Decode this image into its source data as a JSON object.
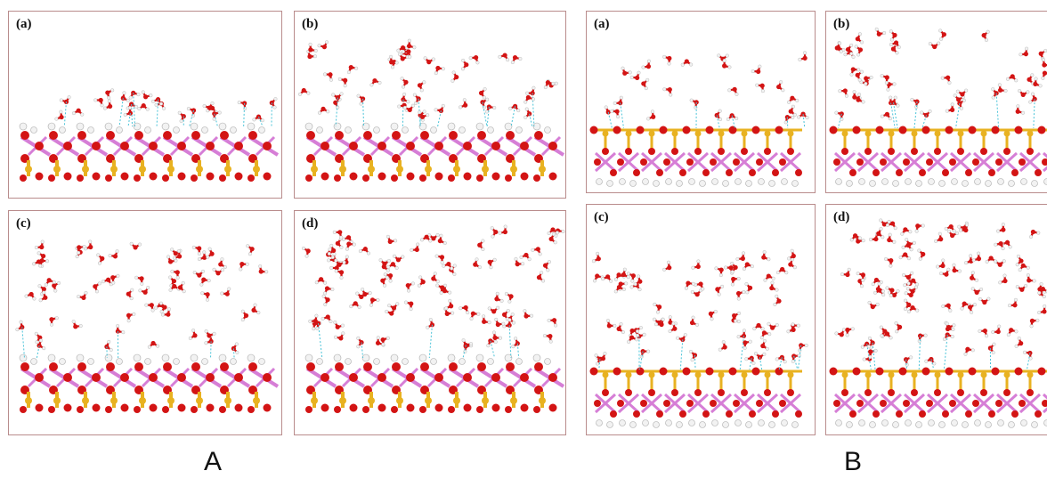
{
  "groups": [
    {
      "label": "A",
      "panels": [
        {
          "label": "(a)",
          "waters": 22,
          "band": "low"
        },
        {
          "label": "(b)",
          "waters": 45,
          "band": "mid"
        },
        {
          "label": "(c)",
          "waters": 60,
          "band": "low-high"
        },
        {
          "label": "(d)",
          "waters": 85,
          "band": "full"
        }
      ]
    },
    {
      "label": "B",
      "panels": [
        {
          "label": "(a)",
          "waters": 25,
          "band": "low"
        },
        {
          "label": "(b)",
          "waters": 45,
          "band": "mid"
        },
        {
          "label": "(c)",
          "waters": 65,
          "band": "mid-high"
        },
        {
          "label": "(d)",
          "waters": 85,
          "band": "full"
        }
      ]
    }
  ],
  "colors": {
    "oxygen": "#d31414",
    "hydrogen": "#f2f2f2",
    "silicon": "#e8b221",
    "aluminum": "#d67ed6",
    "hbond": "#49c3d8",
    "frame": "#b98c8c"
  }
}
